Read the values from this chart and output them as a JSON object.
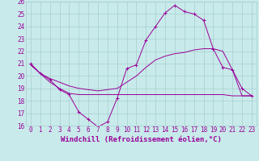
{
  "xlabel": "Windchill (Refroidissement éolien,°C)",
  "xlim": [
    -0.5,
    23.5
  ],
  "ylim": [
    16,
    26
  ],
  "xticks": [
    0,
    1,
    2,
    3,
    4,
    5,
    6,
    7,
    8,
    9,
    10,
    11,
    12,
    13,
    14,
    15,
    16,
    17,
    18,
    19,
    20,
    21,
    22,
    23
  ],
  "yticks": [
    16,
    17,
    18,
    19,
    20,
    21,
    22,
    23,
    24,
    25,
    26
  ],
  "background_color": "#c8eaea",
  "grid_color": "#a8cece",
  "line_color": "#990099",
  "line1_x": [
    0,
    1,
    2,
    3,
    4,
    5,
    6,
    7,
    8,
    9,
    10,
    11,
    12,
    13,
    14,
    15,
    16,
    17,
    18,
    19,
    20,
    21,
    22,
    23
  ],
  "line1_y": [
    21.0,
    20.2,
    19.7,
    18.9,
    18.5,
    17.1,
    16.5,
    15.9,
    16.3,
    18.2,
    20.6,
    20.9,
    22.9,
    24.0,
    25.1,
    25.7,
    25.2,
    25.0,
    24.5,
    22.2,
    20.7,
    20.5,
    19.0,
    18.4
  ],
  "line2_x": [
    0,
    1,
    2,
    3,
    4,
    5,
    6,
    7,
    8,
    9,
    10,
    11,
    12,
    13,
    14,
    15,
    16,
    17,
    18,
    19,
    20,
    21,
    22,
    23
  ],
  "line2_y": [
    20.9,
    20.2,
    19.8,
    19.5,
    19.2,
    19.0,
    18.9,
    18.8,
    18.9,
    19.0,
    19.5,
    20.0,
    20.7,
    21.3,
    21.6,
    21.8,
    21.9,
    22.1,
    22.2,
    22.2,
    22.0,
    20.5,
    18.4,
    18.4
  ],
  "line3_x": [
    0,
    1,
    2,
    3,
    4,
    5,
    6,
    7,
    8,
    9,
    10,
    11,
    12,
    13,
    14,
    15,
    16,
    17,
    18,
    19,
    20,
    21,
    22,
    23
  ],
  "line3_y": [
    20.9,
    20.2,
    19.5,
    19.0,
    18.6,
    18.5,
    18.5,
    18.5,
    18.5,
    18.5,
    18.5,
    18.5,
    18.5,
    18.5,
    18.5,
    18.5,
    18.5,
    18.5,
    18.5,
    18.5,
    18.5,
    18.4,
    18.4,
    18.4
  ],
  "tick_fontsize": 5.5,
  "xlabel_fontsize": 6.5
}
